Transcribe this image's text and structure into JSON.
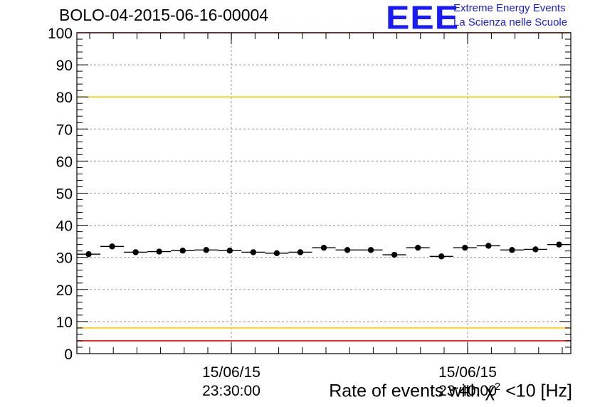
{
  "title": "BOLO-04-2015-06-16-00004",
  "logo": {
    "letters": "EEE",
    "line1": "Extreme Energy Events",
    "line2": "La Scienza nelle Scuole"
  },
  "chart_data": {
    "type": "scatter",
    "xlabel_prefix": "Rate of events with ",
    "xlabel_symbol": "χ",
    "xlabel_sup": "2",
    "xlabel_suffix": " <10 [Hz]",
    "ylim": [
      0,
      100
    ],
    "yticks": [
      "0",
      "10",
      "20",
      "30",
      "40",
      "50",
      "60",
      "70",
      "80",
      "90",
      "100"
    ],
    "xtick_labels": [
      {
        "date": "15/06/15",
        "time": "23:30:00"
      },
      {
        "date": "15/06/15",
        "time": "23:40:00"
      }
    ],
    "points": [
      31.0,
      33.4,
      31.6,
      31.8,
      32.1,
      32.3,
      32.1,
      31.6,
      31.3,
      31.6,
      33.0,
      32.3,
      32.3,
      30.8,
      33.0,
      30.3,
      33.0,
      33.6,
      32.3,
      32.5,
      34.0
    ],
    "reference_lines": [
      {
        "value": 100,
        "color": "#ff0000"
      },
      {
        "value": 80,
        "color": "#ffcc00"
      },
      {
        "value": 8,
        "color": "#ffcc00"
      },
      {
        "value": 4,
        "color": "#ff0000"
      }
    ],
    "grid": true,
    "marker_color": "#000000"
  }
}
